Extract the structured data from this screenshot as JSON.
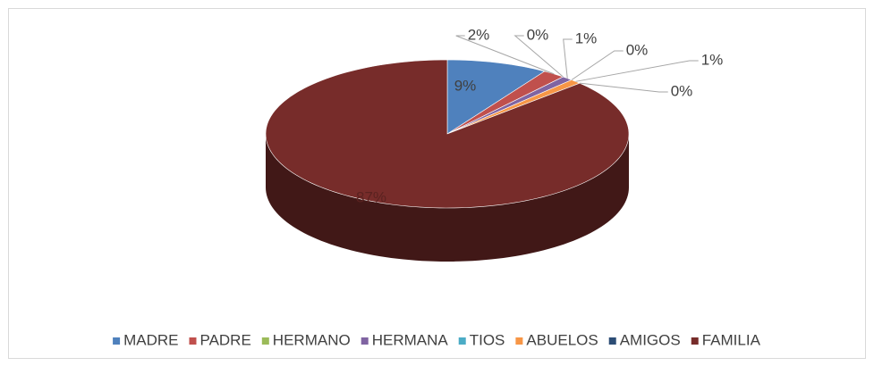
{
  "chart_data": {
    "type": "pie3d",
    "categories": [
      "MADRE",
      "PADRE",
      "HERMANO",
      "HERMANA",
      "TIOS",
      "ABUELOS",
      "AMIGOS",
      "FAMILIA"
    ],
    "values": [
      9,
      2,
      0,
      1,
      0,
      1,
      0,
      87
    ],
    "value_labels": [
      "9%",
      "2%",
      "0%",
      "1%",
      "0%",
      "1%",
      "0%",
      "87%"
    ],
    "colors": [
      "#4f81bd",
      "#c0504d",
      "#9bbb59",
      "#8064a2",
      "#4bacc6",
      "#f79646",
      "#2c4d75",
      "#772c2a"
    ],
    "legend": "bottom"
  }
}
